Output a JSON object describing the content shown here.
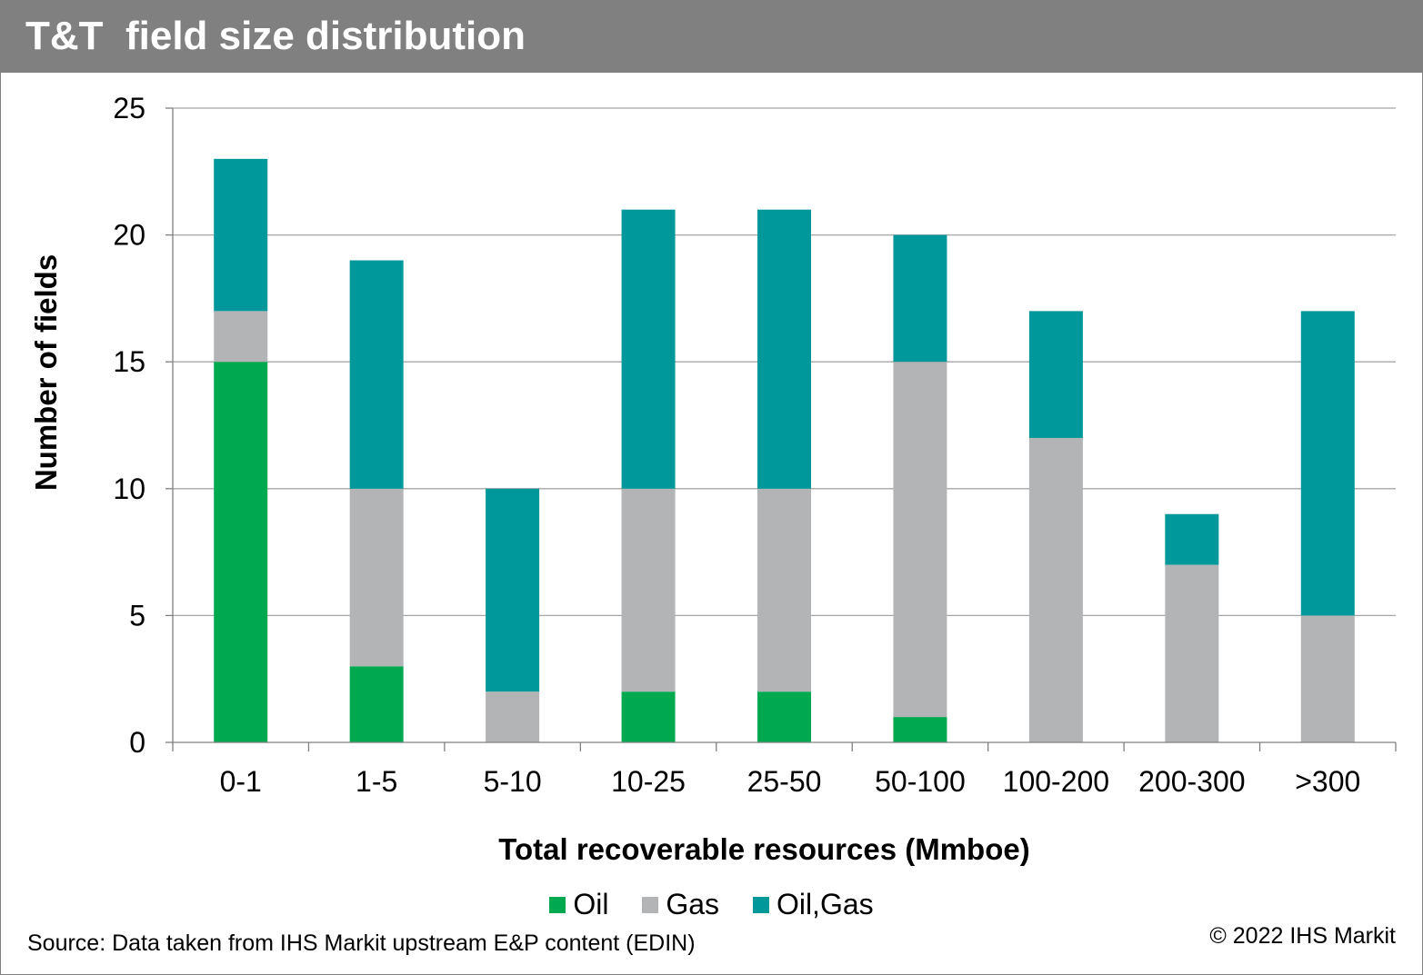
{
  "header": {
    "title": "T&T  field size distribution"
  },
  "chart_data": {
    "type": "bar",
    "stacked": true,
    "title": "T&T  field size distribution",
    "xlabel": "Total recoverable resources (Mmboe)",
    "ylabel": "Number of fields",
    "ylim": [
      0,
      25
    ],
    "yticks": [
      0,
      5,
      10,
      15,
      20,
      25
    ],
    "grid": true,
    "legend_position": "bottom",
    "categories": [
      "0-1",
      "1-5",
      "5-10",
      "10-25",
      "25-50",
      "50-100",
      "100-200",
      "200-300",
      ">300"
    ],
    "series": [
      {
        "name": "Oil",
        "color": "#00A84F",
        "values": [
          15,
          3,
          0,
          2,
          2,
          1,
          0,
          0,
          0
        ]
      },
      {
        "name": "Gas",
        "color": "#B3B4B6",
        "values": [
          2,
          7,
          2,
          8,
          8,
          14,
          12,
          7,
          5
        ]
      },
      {
        "name": "Oil,Gas",
        "color": "#00989A",
        "values": [
          6,
          9,
          8,
          11,
          11,
          5,
          5,
          2,
          12
        ]
      }
    ]
  },
  "footer": {
    "source": "Source: Data taken from IHS Markit upstream E&P content (EDIN)",
    "copyright": "© 2022 IHS Markit"
  }
}
